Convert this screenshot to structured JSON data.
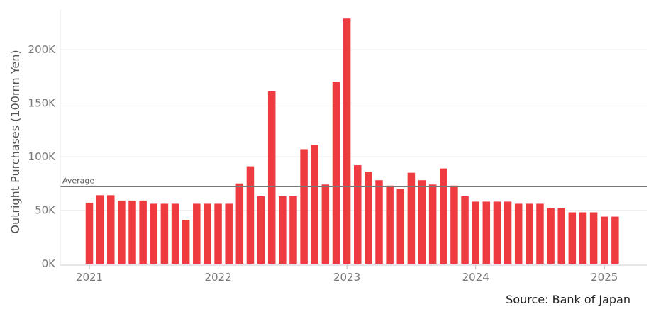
{
  "chart_data": {
    "type": "bar",
    "ylabel": "Outright Purchases (100mn Yen)",
    "ylim": [
      0,
      240000
    ],
    "yticks": [
      0,
      50000,
      100000,
      150000,
      200000
    ],
    "ytick_labels": [
      "0K",
      "50K",
      "100K",
      "150K",
      "200K"
    ],
    "x_tick_labels": [
      "2021",
      "2022",
      "2023",
      "2024",
      "2025"
    ],
    "x_tick_month_index": [
      0,
      12,
      24,
      36,
      48
    ],
    "grid": true,
    "bar_color": "#ee3b40",
    "average": {
      "label": "Average",
      "value": 72000,
      "color": "#777777"
    },
    "categories": [
      "2021-01",
      "2021-02",
      "2021-03",
      "2021-04",
      "2021-05",
      "2021-06",
      "2021-07",
      "2021-08",
      "2021-09",
      "2021-10",
      "2021-11",
      "2021-12",
      "2022-01",
      "2022-02",
      "2022-03",
      "2022-04",
      "2022-05",
      "2022-06",
      "2022-07",
      "2022-08",
      "2022-09",
      "2022-10",
      "2022-11",
      "2022-12",
      "2023-01",
      "2023-02",
      "2023-03",
      "2023-04",
      "2023-05",
      "2023-06",
      "2023-07",
      "2023-08",
      "2023-09",
      "2023-10",
      "2023-11",
      "2023-12",
      "2024-01",
      "2024-02",
      "2024-03",
      "2024-04",
      "2024-05",
      "2024-06",
      "2024-07",
      "2024-08",
      "2024-09",
      "2024-10",
      "2024-11",
      "2024-12",
      "2025-01",
      "2025-02"
    ],
    "values": [
      57000,
      64000,
      64000,
      59000,
      59000,
      59000,
      56000,
      56000,
      56000,
      41000,
      56000,
      56000,
      56000,
      56000,
      75000,
      91000,
      63000,
      161000,
      63000,
      63000,
      107000,
      111000,
      74000,
      170000,
      229000,
      92000,
      86000,
      78000,
      73000,
      70000,
      85000,
      78000,
      74000,
      89000,
      73000,
      63000,
      58000,
      58000,
      58000,
      58000,
      56000,
      56000,
      56000,
      52000,
      52000,
      48000,
      48000,
      48000,
      44000,
      44000
    ]
  },
  "source": "Source: Bank of Japan"
}
